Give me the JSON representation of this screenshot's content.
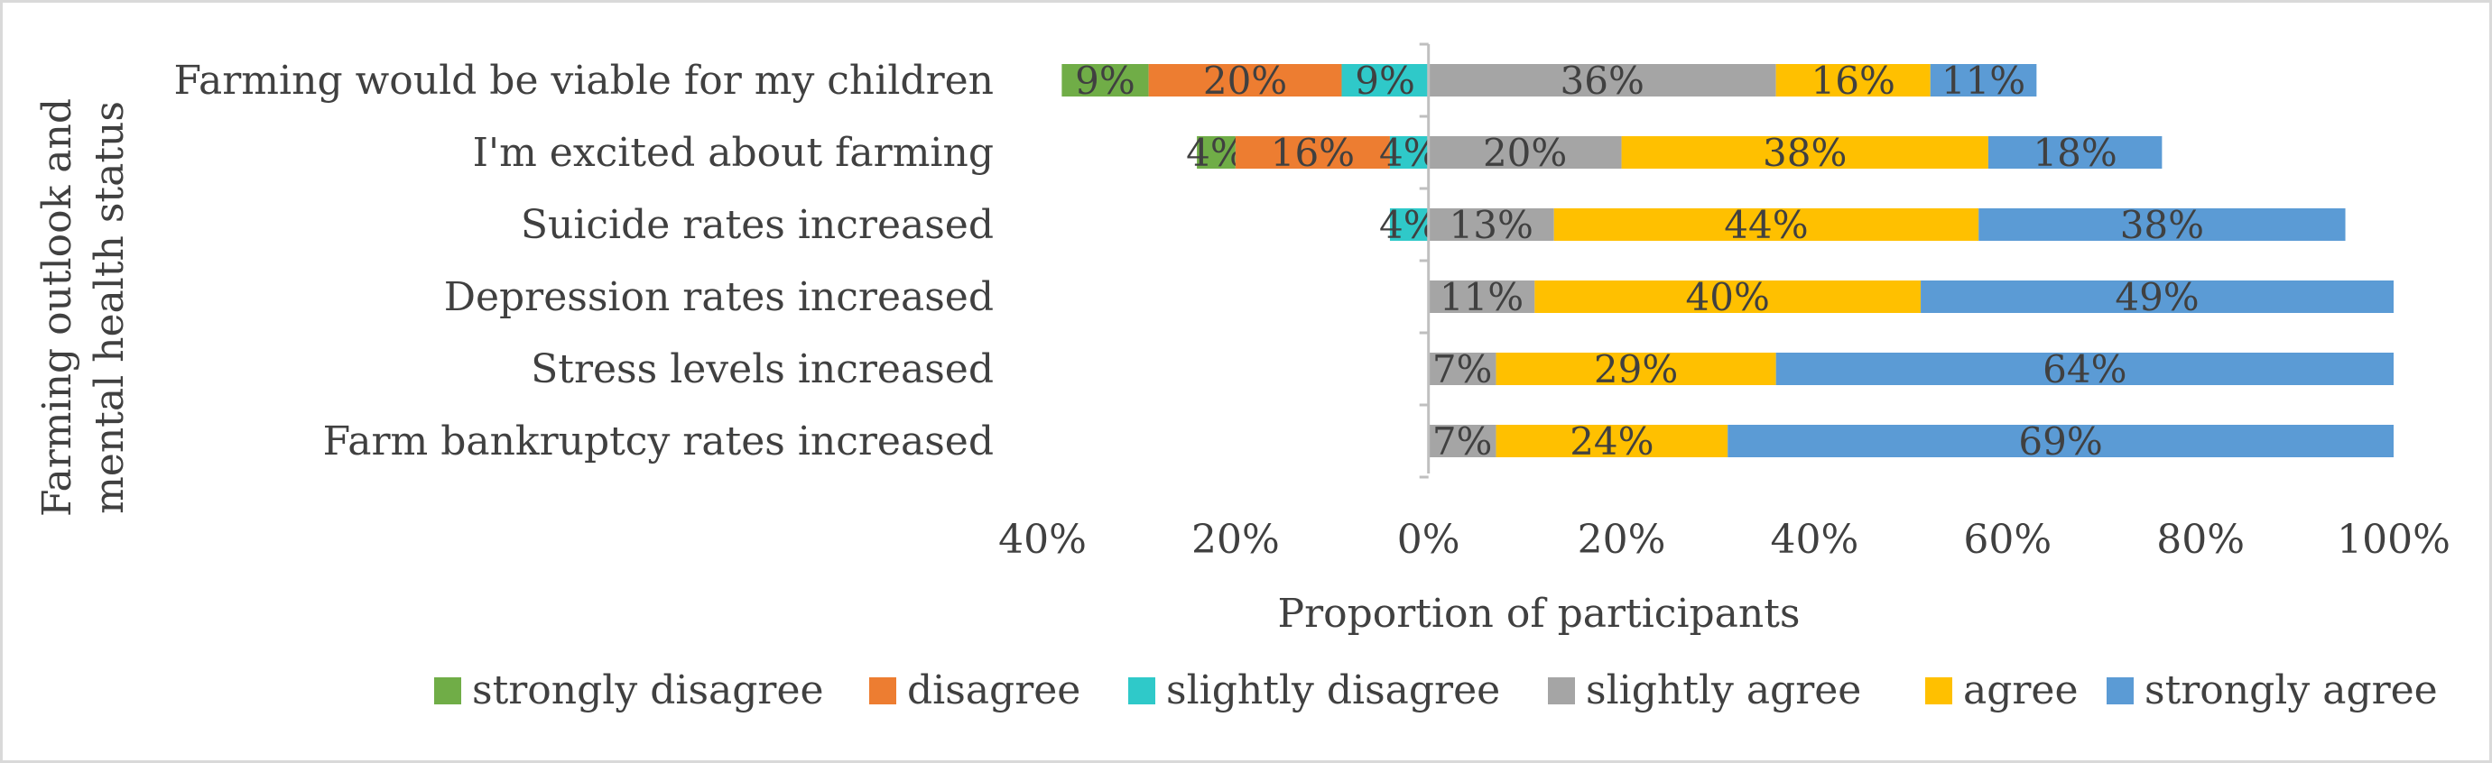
{
  "chart_data": {
    "type": "bar",
    "orientation": "horizontal-diverging-stacked",
    "title": "",
    "xlabel": "Proportion of participants",
    "ylabel": "Farming outlook and mental health status",
    "xlim": [
      -40,
      100
    ],
    "x_ticks": [
      -40,
      -20,
      0,
      20,
      40,
      60,
      80,
      100
    ],
    "x_tick_labels": [
      "40%",
      "20%",
      "0%",
      "20%",
      "40%",
      "60%",
      "80%",
      "100%"
    ],
    "grid": false,
    "legend_position": "bottom",
    "categories": [
      "Farming would be viable for my children",
      "I'm excited about farming",
      "Suicide rates increased",
      "Depression rates increased",
      "Stress levels increased",
      "Farm bankruptcy rates increased"
    ],
    "series": [
      {
        "name": "strongly disagree",
        "side": "negative",
        "color": "#70ad47",
        "values": [
          9,
          4,
          0,
          0,
          0,
          0
        ]
      },
      {
        "name": "disagree",
        "side": "negative",
        "color": "#ed7d31",
        "values": [
          20,
          16,
          0,
          0,
          0,
          0
        ]
      },
      {
        "name": "slightly disagree",
        "side": "negative",
        "color": "#2fc9c9",
        "values": [
          9,
          4,
          4,
          0,
          0,
          0
        ]
      },
      {
        "name": "slightly agree",
        "side": "positive",
        "color": "#a5a5a5",
        "values": [
          36,
          20,
          13,
          11,
          7,
          7
        ]
      },
      {
        "name": "agree",
        "side": "positive",
        "color": "#ffc000",
        "values": [
          16,
          38,
          44,
          40,
          29,
          24
        ]
      },
      {
        "name": "strongly agree",
        "side": "positive",
        "color": "#5b9bd5",
        "values": [
          11,
          18,
          38,
          49,
          64,
          69
        ]
      }
    ]
  }
}
